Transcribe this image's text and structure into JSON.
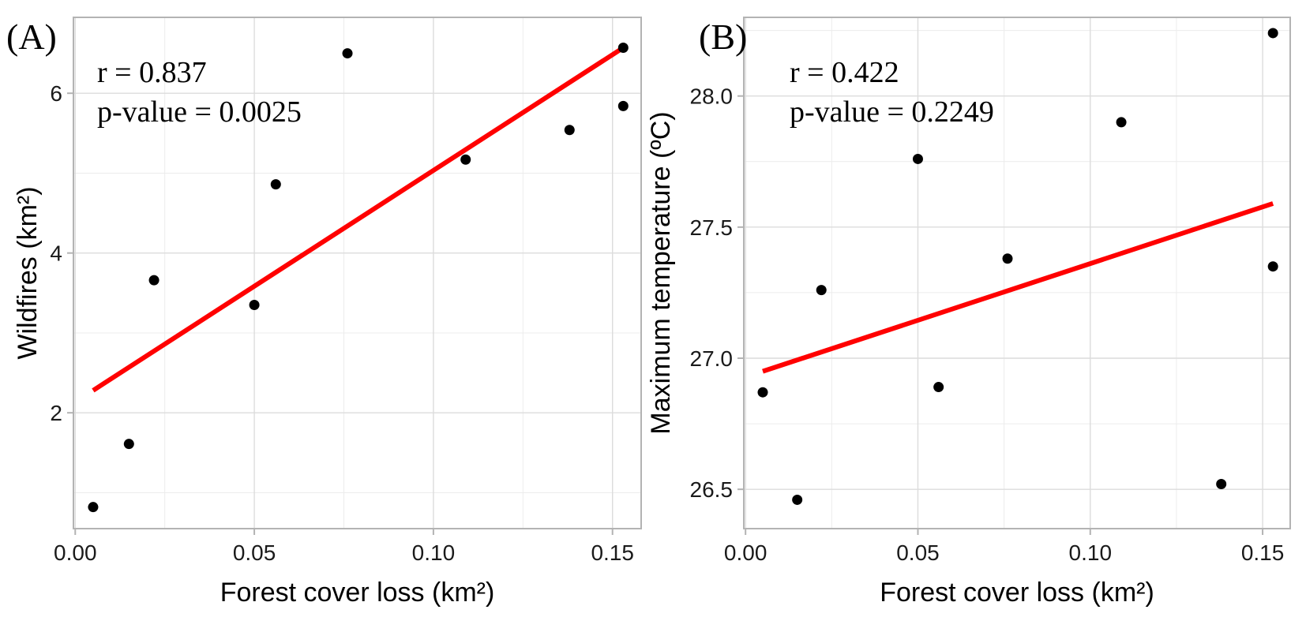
{
  "chart_data": [
    {
      "type": "scatter",
      "panel_label": "(A)",
      "stats": {
        "r_text": "r = 0.837",
        "p_text": "p-value = 0.0025"
      },
      "xlabel": "Forest cover loss (km²)",
      "ylabel": "Wildfires (km²)",
      "xlim": [
        -0.0005,
        0.158
      ],
      "ylim": [
        0.55,
        6.95
      ],
      "xticks": [
        0.0,
        0.05,
        0.1,
        0.15
      ],
      "xtick_labels": [
        "0.00",
        "0.05",
        "0.10",
        "0.15"
      ],
      "yticks": [
        2,
        4,
        6
      ],
      "ytick_labels": [
        "2",
        "4",
        "6"
      ],
      "xminor": [
        0.025,
        0.075,
        0.125
      ],
      "yminor": [
        1,
        3,
        5
      ],
      "grid": true,
      "points": {
        "x": [
          0.005,
          0.015,
          0.022,
          0.05,
          0.056,
          0.076,
          0.109,
          0.138,
          0.153,
          0.153
        ],
        "y": [
          0.82,
          1.61,
          3.66,
          3.35,
          4.86,
          6.5,
          5.17,
          5.54,
          6.57,
          5.84
        ]
      },
      "fit_line": {
        "x": [
          0.005,
          0.153
        ],
        "y": [
          2.28,
          6.57
        ],
        "color": "#ff0000"
      },
      "point_color": "#000000"
    },
    {
      "type": "scatter",
      "panel_label": "(B)",
      "stats": {
        "r_text": "r = 0.422",
        "p_text": "p-value = 0.2249"
      },
      "xlabel": "Forest cover loss (km²)",
      "ylabel": "Maximum temperature (ºC)",
      "xlim": [
        -0.0005,
        0.158
      ],
      "ylim": [
        26.35,
        28.3
      ],
      "xticks": [
        0.0,
        0.05,
        0.1,
        0.15
      ],
      "xtick_labels": [
        "0.00",
        "0.05",
        "0.10",
        "0.15"
      ],
      "yticks": [
        26.5,
        27.0,
        27.5,
        28.0
      ],
      "ytick_labels": [
        "26.5",
        "27.0",
        "27.5",
        "28.0"
      ],
      "xminor": [
        0.025,
        0.075,
        0.125
      ],
      "yminor": [
        26.75,
        27.25,
        27.75,
        28.25
      ],
      "grid": true,
      "points": {
        "x": [
          0.005,
          0.015,
          0.022,
          0.05,
          0.056,
          0.076,
          0.109,
          0.138,
          0.153,
          0.153
        ],
        "y": [
          26.87,
          26.46,
          27.26,
          27.76,
          26.89,
          27.38,
          27.9,
          26.52,
          28.24,
          27.35
        ]
      },
      "fit_line": {
        "x": [
          0.005,
          0.153
        ],
        "y": [
          26.95,
          27.59
        ],
        "color": "#ff0000"
      },
      "point_color": "#000000"
    }
  ]
}
